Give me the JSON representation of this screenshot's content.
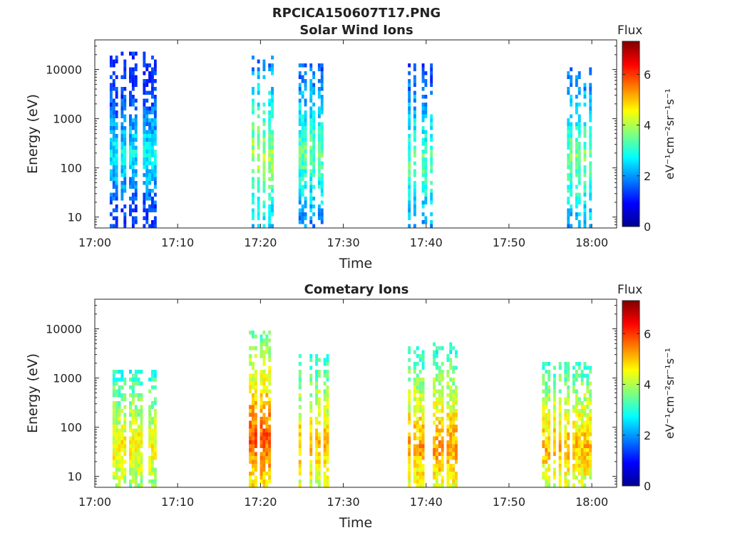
{
  "figure": {
    "title": "RPCICA150607T17.PNG"
  },
  "chart_data": [
    {
      "type": "heatmap",
      "title": "Solar Wind Ions",
      "xlabel": "Time",
      "ylabel": "Energy (eV)",
      "xlim": [
        "17:00",
        "18:03"
      ],
      "ylim": [
        6,
        40000
      ],
      "yscale": "log",
      "xticks": [
        "17:00",
        "17:10",
        "17:20",
        "17:30",
        "17:40",
        "17:50",
        "18:00"
      ],
      "yticks": [
        "10",
        "100",
        "1000",
        "10000"
      ],
      "colorbar": {
        "title": "Flux",
        "label": "eV⁻¹cm⁻²sr⁻¹s⁻¹",
        "range": [
          0,
          7.3
        ],
        "ticks": [
          "0",
          "2",
          "4",
          "6"
        ]
      },
      "bursts": [
        {
          "t": 17.05,
          "t0": 17.03,
          "t1": 17.12,
          "emin": 6,
          "emax": 25000,
          "peak_e": 200,
          "peak_flux": 3.2
        },
        {
          "t": 17.33,
          "t0": 17.31,
          "t1": 17.36,
          "emin": 6,
          "emax": 18000,
          "peak_e": 180,
          "peak_flux": 4.5
        },
        {
          "t": 17.43,
          "t0": 17.41,
          "t1": 17.47,
          "emin": 6,
          "emax": 14000,
          "peak_e": 200,
          "peak_flux": 4.0
        },
        {
          "t": 17.64,
          "t0": 17.63,
          "t1": 17.68,
          "emin": 6,
          "emax": 13000,
          "peak_e": 130,
          "peak_flux": 4.0
        },
        {
          "t": 17.96,
          "t0": 17.95,
          "t1": 18.0,
          "emin": 6,
          "emax": 12000,
          "peak_e": 150,
          "peak_flux": 4.2
        }
      ]
    },
    {
      "type": "heatmap",
      "title": "Cometary Ions",
      "xlabel": "Time",
      "ylabel": "Energy (eV)",
      "xlim": [
        "17:00",
        "18:03"
      ],
      "ylim": [
        6,
        40000
      ],
      "yscale": "log",
      "xticks": [
        "17:00",
        "17:10",
        "17:20",
        "17:30",
        "17:40",
        "17:50",
        "18:00"
      ],
      "yticks": [
        "10",
        "100",
        "1000",
        "10000"
      ],
      "colorbar": {
        "title": "Flux",
        "label": "eV⁻¹cm⁻²sr⁻¹s⁻¹",
        "range": [
          0,
          7.3
        ],
        "ticks": [
          "0",
          "2",
          "4",
          "6"
        ]
      },
      "bursts": [
        {
          "t": 17.05,
          "t0": 17.03,
          "t1": 17.12,
          "emin": 6,
          "emax": 1500,
          "peak_e": 40,
          "peak_flux": 5.2
        },
        {
          "t": 17.33,
          "t0": 17.31,
          "t1": 17.36,
          "emin": 6,
          "emax": 9000,
          "peak_e": 60,
          "peak_flux": 6.3
        },
        {
          "t": 17.43,
          "t0": 17.41,
          "t1": 17.47,
          "emin": 6,
          "emax": 3000,
          "peak_e": 40,
          "peak_flux": 5.6
        },
        {
          "t": 17.66,
          "t0": 17.63,
          "t1": 17.74,
          "emin": 6,
          "emax": 5000,
          "peak_e": 40,
          "peak_flux": 5.8
        },
        {
          "t": 17.95,
          "t0": 17.9,
          "t1": 18.0,
          "emin": 6,
          "emax": 2000,
          "peak_e": 40,
          "peak_flux": 5.6
        }
      ]
    }
  ]
}
